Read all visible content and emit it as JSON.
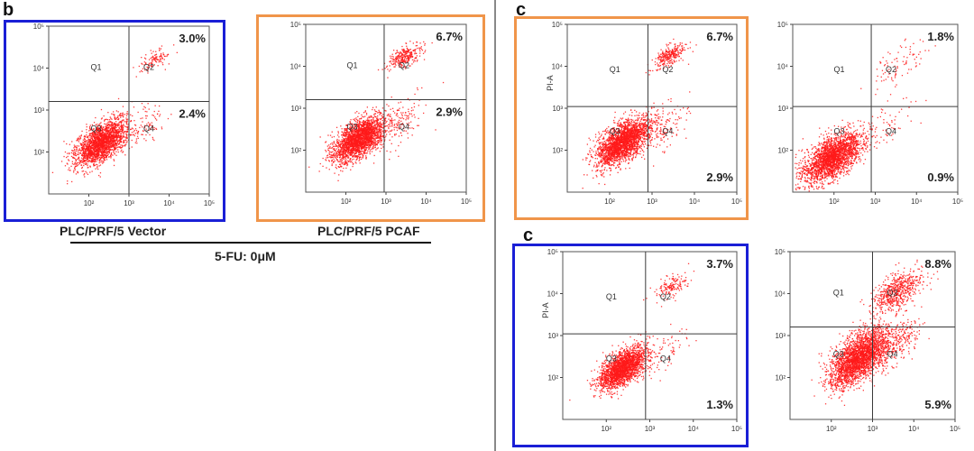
{
  "panel_letters": {
    "b": "b",
    "c_top": "c",
    "c_bottom": "c"
  },
  "captions": {
    "vector": "PLC/PRF/5 Vector",
    "pcaf": "PLC/PRF/5 PCAF",
    "treatment": "5-FU: 0μM"
  },
  "colors": {
    "dots": "#ff1a1a",
    "quad_lines": "#3a3a3a",
    "frame_blue": "#1a1fd6",
    "frame_orange": "#f0954a"
  },
  "chart_data": [
    {
      "id": "b1",
      "type": "scatter",
      "scale": "log",
      "xlim": [
        10,
        100000
      ],
      "ylim": [
        10,
        100000
      ],
      "x_ticks": [
        "10²",
        "10³",
        "10⁴",
        "10⁵"
      ],
      "y_ticks": [
        "10²",
        "10³",
        "10⁴",
        "10⁵"
      ],
      "quadrant_labels": [
        "Q1",
        "Q2",
        "Q3",
        "Q4"
      ],
      "ylabel": "",
      "gates": {
        "x": 1000,
        "y": 1600
      },
      "percentages": {
        "upper_right": "3.0%",
        "lower_right": "2.4%"
      },
      "populations": [
        {
          "cx": 200,
          "cy": 170,
          "sx": 0.33,
          "sy": 0.28,
          "n": 2200
        },
        {
          "cx": 4000,
          "cy": 16000,
          "sx": 0.22,
          "sy": 0.15,
          "n": 110
        },
        {
          "cx": 2500,
          "cy": 400,
          "sx": 0.3,
          "sy": 0.3,
          "n": 90
        }
      ]
    },
    {
      "id": "b2",
      "type": "scatter",
      "scale": "log",
      "xlim": [
        10,
        100000
      ],
      "ylim": [
        10,
        100000
      ],
      "x_ticks": [
        "10²",
        "10³",
        "10⁴",
        "10⁵"
      ],
      "y_ticks": [
        "10²",
        "10³",
        "10⁴",
        "10⁵"
      ],
      "quadrant_labels": [
        "Q1",
        "Q2",
        "Q3",
        "Q4"
      ],
      "ylabel": "",
      "gates": {
        "x": 900,
        "y": 1600
      },
      "percentages": {
        "upper_right": "6.7%",
        "lower_right": "2.9%"
      },
      "populations": [
        {
          "cx": 210,
          "cy": 190,
          "sx": 0.33,
          "sy": 0.27,
          "n": 2400
        },
        {
          "cx": 3000,
          "cy": 18000,
          "sx": 0.2,
          "sy": 0.14,
          "n": 280
        },
        {
          "cx": 2200,
          "cy": 450,
          "sx": 0.3,
          "sy": 0.3,
          "n": 120
        }
      ]
    },
    {
      "id": "c1",
      "type": "scatter",
      "scale": "log",
      "xlim": [
        10,
        100000
      ],
      "ylim": [
        10,
        100000
      ],
      "x_ticks": [
        "10²",
        "10³",
        "10⁴",
        "10⁵"
      ],
      "y_ticks": [
        "10²",
        "10³",
        "10⁴",
        "10⁵"
      ],
      "quadrant_labels": [
        "Q1",
        "Q2",
        "Q3",
        "Q4"
      ],
      "ylabel": "PI-A",
      "gates": {
        "x": 800,
        "y": 1100
      },
      "percentages": {
        "upper_right": "6.7%",
        "lower_right": "2.9%"
      },
      "populations": [
        {
          "cx": 200,
          "cy": 160,
          "sx": 0.32,
          "sy": 0.28,
          "n": 2400
        },
        {
          "cx": 2500,
          "cy": 18000,
          "sx": 0.2,
          "sy": 0.15,
          "n": 280
        },
        {
          "cx": 2000,
          "cy": 400,
          "sx": 0.3,
          "sy": 0.3,
          "n": 120
        }
      ]
    },
    {
      "id": "c2",
      "type": "scatter",
      "scale": "log",
      "xlim": [
        10,
        100000
      ],
      "ylim": [
        10,
        100000
      ],
      "x_ticks": [
        "10²",
        "10³",
        "10⁴",
        "10⁵"
      ],
      "y_ticks": [
        "10²",
        "10³",
        "10⁴",
        "10⁵"
      ],
      "quadrant_labels": [
        "Q1",
        "Q2",
        "Q3",
        "Q4"
      ],
      "ylabel": "",
      "gates": {
        "x": 800,
        "y": 1100
      },
      "percentages": {
        "upper_right": "1.8%",
        "lower_right": "0.9%"
      },
      "populations": [
        {
          "cx": 90,
          "cy": 70,
          "sx": 0.35,
          "sy": 0.3,
          "n": 2400
        },
        {
          "cx": 4000,
          "cy": 12000,
          "sx": 0.35,
          "sy": 0.3,
          "n": 90
        },
        {
          "cx": 2200,
          "cy": 400,
          "sx": 0.3,
          "sy": 0.3,
          "n": 60
        }
      ]
    },
    {
      "id": "c3",
      "type": "scatter",
      "scale": "log",
      "xlim": [
        10,
        100000
      ],
      "ylim": [
        10,
        100000
      ],
      "x_ticks": [
        "10²",
        "10³",
        "10⁴",
        "10⁵"
      ],
      "y_ticks": [
        "10²",
        "10³",
        "10⁴",
        "10⁵"
      ],
      "quadrant_labels": [
        "Q1",
        "Q2",
        "Q3",
        "Q4"
      ],
      "ylabel": "PI-A",
      "gates": {
        "x": 800,
        "y": 1100
      },
      "percentages": {
        "upper_right": "3.7%",
        "lower_right": "1.3%"
      },
      "populations": [
        {
          "cx": 230,
          "cy": 170,
          "sx": 0.28,
          "sy": 0.25,
          "n": 2200
        },
        {
          "cx": 3000,
          "cy": 15000,
          "sx": 0.2,
          "sy": 0.15,
          "n": 150
        },
        {
          "cx": 2200,
          "cy": 400,
          "sx": 0.3,
          "sy": 0.3,
          "n": 70
        }
      ]
    },
    {
      "id": "c4",
      "type": "scatter",
      "scale": "log",
      "xlim": [
        10,
        100000
      ],
      "ylim": [
        10,
        100000
      ],
      "x_ticks": [
        "10²",
        "10³",
        "10⁴",
        "10⁵"
      ],
      "y_ticks": [
        "10²",
        "10³",
        "10⁴",
        "10⁵"
      ],
      "quadrant_labels": [
        "Q1",
        "Q2",
        "Q3",
        "Q4"
      ],
      "ylabel": "",
      "gates": {
        "x": 1000,
        "y": 1600
      },
      "percentages": {
        "upper_right": "8.8%",
        "lower_right": "5.9%"
      },
      "populations": [
        {
          "cx": 450,
          "cy": 300,
          "sx": 0.35,
          "sy": 0.35,
          "n": 2600
        },
        {
          "cx": 4000,
          "cy": 12000,
          "sx": 0.3,
          "sy": 0.25,
          "n": 600
        },
        {
          "cx": 4000,
          "cy": 700,
          "sx": 0.3,
          "sy": 0.3,
          "n": 250
        }
      ]
    }
  ]
}
